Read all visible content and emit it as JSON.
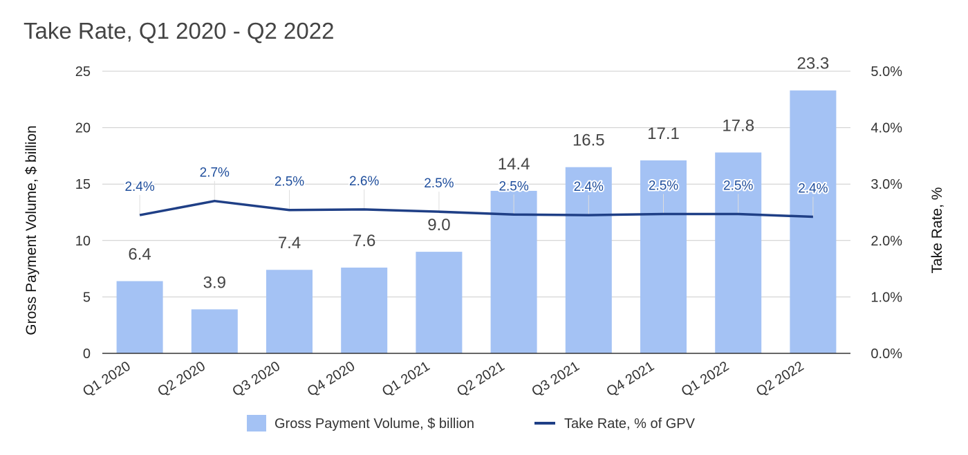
{
  "title": "Take Rate, Q1 2020 - Q2 2022",
  "colors": {
    "bar": "#a4c2f4",
    "line": "#1f3f86",
    "grid": "#cccccc",
    "rate_text": "#1f4e9c"
  },
  "chart_data": {
    "type": "bar",
    "title": "Take Rate, Q1 2020 - Q2 2022",
    "categories": [
      "Q1 2020",
      "Q2 2020",
      "Q3 2020",
      "Q4 2020",
      "Q1 2021",
      "Q2 2021",
      "Q3 2021",
      "Q4 2021",
      "Q1 2022",
      "Q2 2022"
    ],
    "series": [
      {
        "name": "Gross Payment Volume, $ billion",
        "type": "bar",
        "axis": "left",
        "values": [
          6.4,
          3.9,
          7.4,
          7.6,
          9.0,
          14.4,
          16.5,
          17.1,
          17.8,
          23.3
        ],
        "labels": [
          "6.4",
          "3.9",
          "7.4",
          "7.6",
          "9.0",
          "14.4",
          "16.5",
          "17.1",
          "17.8",
          "23.3"
        ]
      },
      {
        "name": "Take Rate, % of GPV",
        "type": "line",
        "axis": "right",
        "values": [
          2.45,
          2.7,
          2.54,
          2.55,
          2.51,
          2.46,
          2.45,
          2.47,
          2.47,
          2.42
        ],
        "labels": [
          "2.4%",
          "2.7%",
          "2.5%",
          "2.6%",
          "2.5%",
          "2.5%",
          "2.4%",
          "2.5%",
          "2.5%",
          "2.4%"
        ]
      }
    ],
    "y_left": {
      "label": "Gross Payment Volume, $ billion",
      "range": [
        0,
        25
      ],
      "ticks": [
        "0",
        "5",
        "10",
        "15",
        "20",
        "25"
      ]
    },
    "y_right": {
      "label": "Take Rate, %",
      "range": [
        0,
        5
      ],
      "ticks": [
        "0.0%",
        "1.0%",
        "2.0%",
        "3.0%",
        "4.0%",
        "5.0%"
      ]
    },
    "grid": true,
    "legend_position": "bottom"
  }
}
